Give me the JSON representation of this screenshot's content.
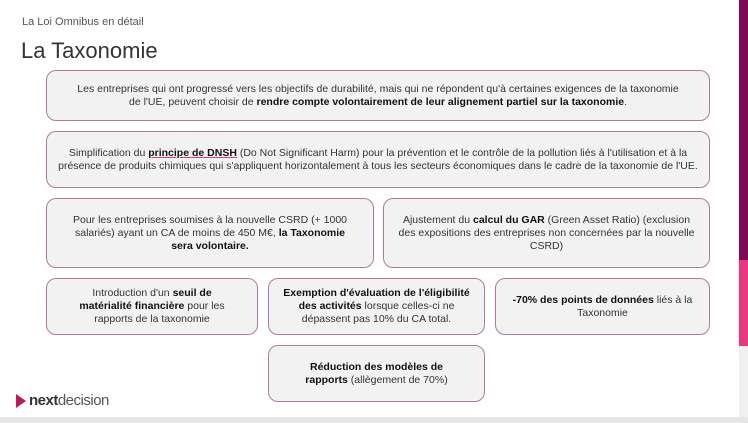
{
  "header": {
    "subtitle": "La Loi Omnibus en détail",
    "title": "La Taxonomie"
  },
  "boxes": [
    {
      "pre": "Les entreprises qui ont progressé vers les objectifs de durabilité, mais qui ne répondent qu'à certaines exigences de la taxonomie de l'UE, peuvent choisir de ",
      "bold": "rendre compte volontairement de leur alignement partiel sur la taxonomie",
      "post": "."
    },
    {
      "pre": "Simplification du ",
      "bold": "principe de DNSH",
      "post": " (Do Not Significant Harm) pour la prévention et le contrôle de la pollution liés à l'utilisation et à la présence de produits chimiques qui s'appliquent horizontalement à tous les secteurs économiques dans le cadre de la taxonomie de l'UE."
    },
    {
      "pre": "Pour les entreprises soumises à la nouvelle CSRD (+ 1000 salariés) ayant un CA de moins de 450 M€, ",
      "bold": "la Taxonomie sera volontaire.",
      "post": ""
    },
    {
      "pre": "Ajustement du ",
      "bold": "calcul du GAR",
      "post": " (Green Asset Ratio) (exclusion des expositions des entreprises non concernées par la nouvelle CSRD)"
    },
    {
      "pre": "Introduction d'un ",
      "bold": "seuil de matérialité financière",
      "post": " pour les rapports de la taxonomie"
    },
    {
      "pre": "",
      "bold": "Exemption d'évaluation de l'éligibilité des activités",
      "post": " lorsque celles-ci ne dépassent pas 10% du CA total."
    },
    {
      "pre": "",
      "bold": "-70% des points de données",
      "post": " liés à la Taxonomie"
    },
    {
      "pre": "",
      "bold": "Réduction des modèles de rapports",
      "post": " (allègement de 70%)"
    }
  ],
  "logo": {
    "strong": "next",
    "light": "decision"
  },
  "colors": {
    "accent_dark": "#7d0a55",
    "accent_pink": "#e8397f",
    "box_border": "#b07aa0",
    "box_bg": "#f2f2f2"
  }
}
